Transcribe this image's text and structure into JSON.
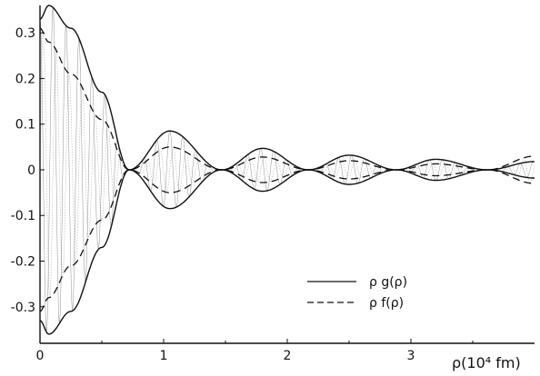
{
  "chart_data": {
    "type": "line",
    "xlabel": "ρ(10⁴ fm)",
    "ylabel": "",
    "xlim": [
      0,
      4
    ],
    "ylim": [
      -0.38,
      0.36
    ],
    "x_ticks": [
      "0",
      "1",
      "2",
      "3"
    ],
    "y_ticks": [
      "0.3",
      "0.2",
      "0.1",
      "0",
      "-0.1",
      "-0.2",
      "-0.3"
    ],
    "grid": false,
    "legend_position": "lower-right",
    "series": [
      {
        "name": "ρ g(ρ)",
        "style": "solid",
        "description": "envelope",
        "envelope_points": [
          [
            0.0,
            0.33
          ],
          [
            0.07,
            0.36
          ],
          [
            0.25,
            0.31
          ],
          [
            0.5,
            0.17
          ],
          [
            0.72,
            0.0
          ],
          [
            1.05,
            0.085
          ],
          [
            1.47,
            0.0
          ],
          [
            1.8,
            0.047
          ],
          [
            2.17,
            0.0
          ],
          [
            2.5,
            0.032
          ],
          [
            2.88,
            0.0
          ],
          [
            3.2,
            0.023
          ],
          [
            3.62,
            0.0
          ],
          [
            4.0,
            0.018
          ]
        ]
      },
      {
        "name": "ρ f(ρ)",
        "style": "dashed",
        "description": "envelope",
        "envelope_points": [
          [
            0.0,
            0.31
          ],
          [
            0.07,
            0.28
          ],
          [
            0.25,
            0.21
          ],
          [
            0.5,
            0.11
          ],
          [
            0.72,
            0.0
          ],
          [
            1.05,
            0.05
          ],
          [
            1.47,
            0.0
          ],
          [
            1.8,
            0.028
          ],
          [
            2.17,
            0.0
          ],
          [
            2.5,
            0.02
          ],
          [
            2.88,
            0.0
          ],
          [
            3.2,
            0.013
          ],
          [
            3.62,
            0.0
          ],
          [
            4.0,
            0.03
          ]
        ]
      }
    ]
  }
}
